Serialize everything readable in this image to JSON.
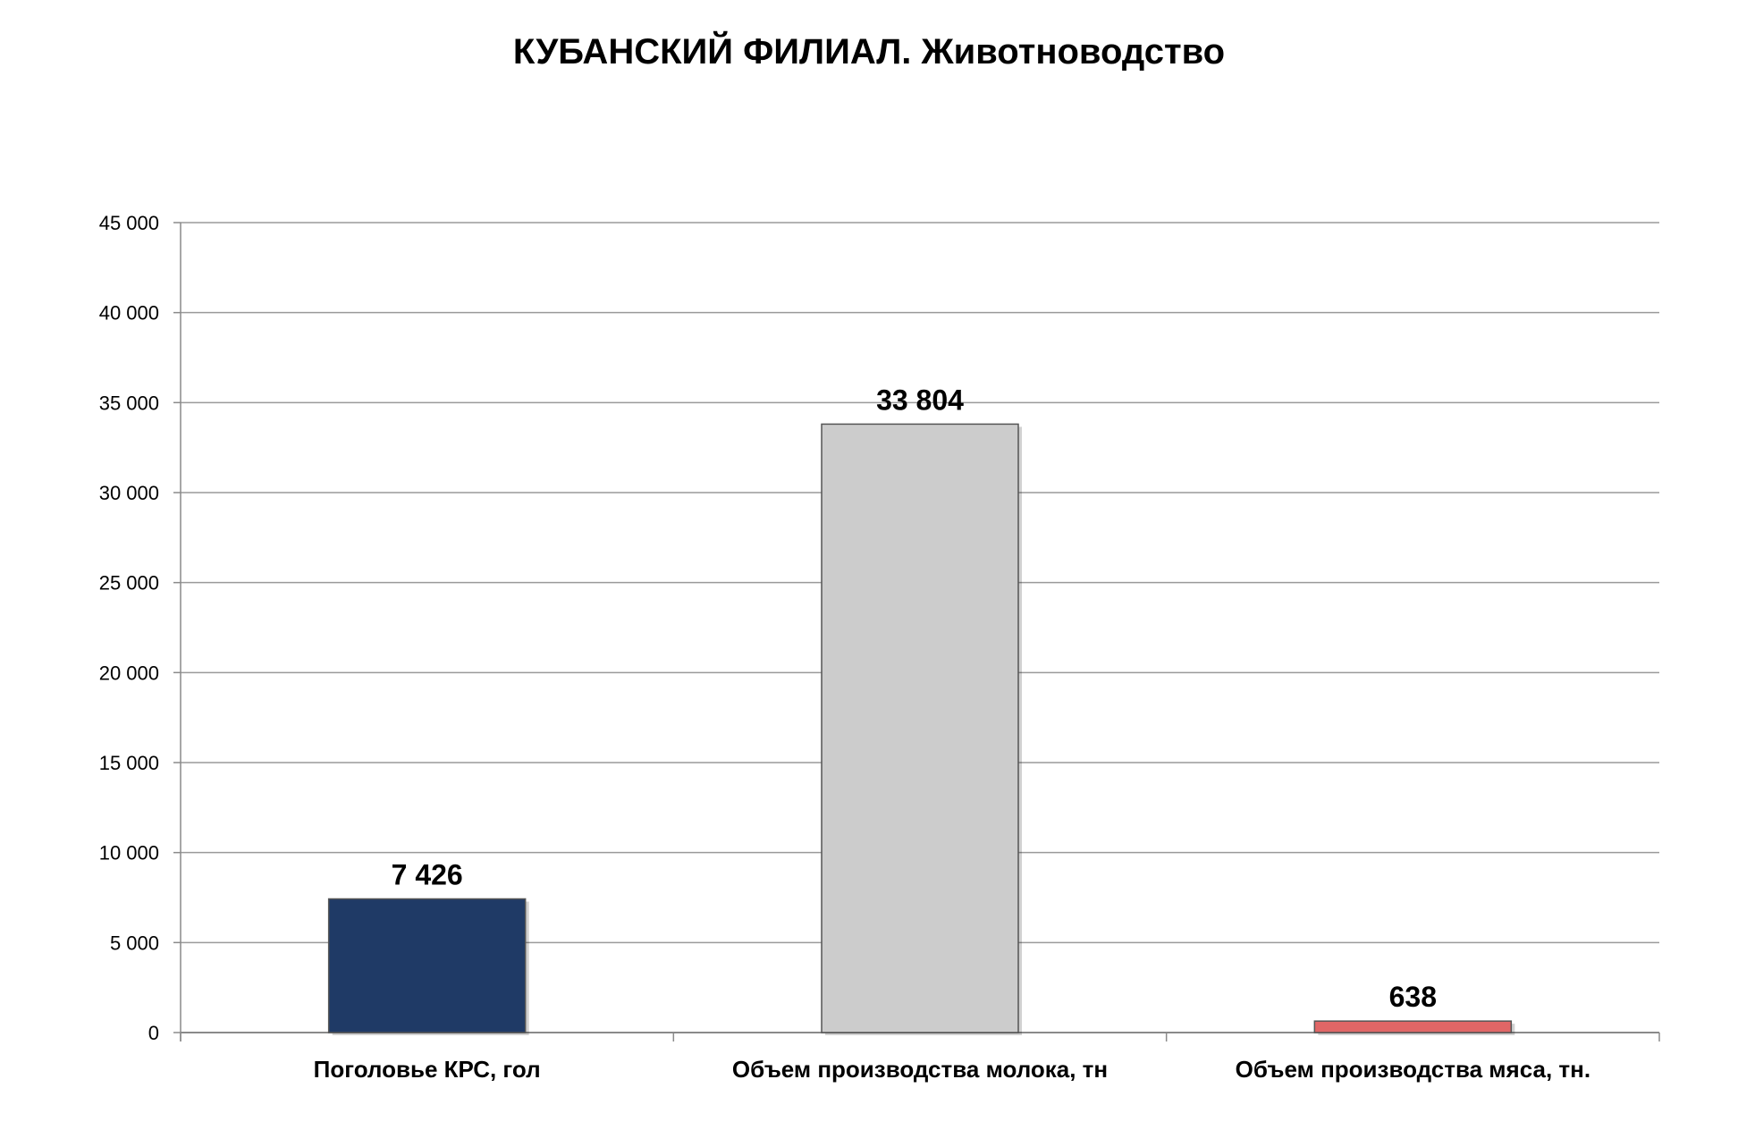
{
  "chart_data": {
    "type": "bar",
    "title": "КУБАНСКИЙ ФИЛИАЛ. Животноводство",
    "categories": [
      "Поголовье КРС, гол",
      "Объем производства молока, тн",
      "Объем производства мяса, тн."
    ],
    "values": [
      7426,
      33804,
      638
    ],
    "value_labels": [
      "7 426",
      "33 804",
      "638"
    ],
    "bar_colors": [
      "#1f3a66",
      "#cccccc",
      "#e06666"
    ],
    "ylim": [
      0,
      45000
    ],
    "yticks": [
      0,
      5000,
      10000,
      15000,
      20000,
      25000,
      30000,
      35000,
      40000,
      45000
    ],
    "ytick_labels": [
      "0",
      "5 000",
      "10 000",
      "15 000",
      "20 000",
      "25 000",
      "30 000",
      "35 000",
      "40 000",
      "45 000"
    ],
    "grid": true,
    "legend": "none",
    "xlabel": "",
    "ylabel": ""
  }
}
